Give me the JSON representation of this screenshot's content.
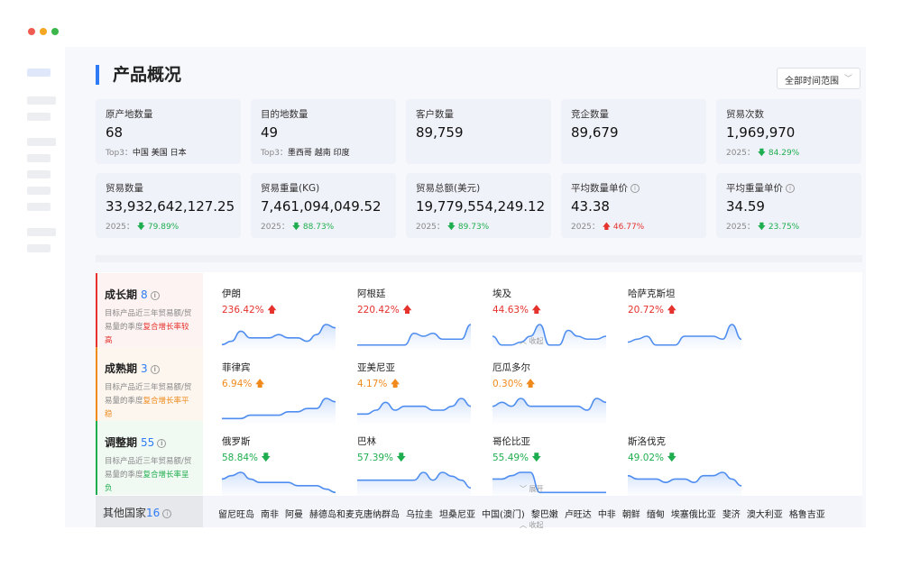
{
  "window": {
    "controls": [
      "close",
      "minimize",
      "maximize"
    ]
  },
  "header": {
    "title": "产品概况",
    "range_select": "全部时间范围"
  },
  "cards": [
    {
      "label": "原产地数量",
      "value": "68",
      "sub_label": "Top3：",
      "sub_value": "中国 美国 日本"
    },
    {
      "label": "目的地数量",
      "value": "49",
      "sub_label": "Top3：",
      "sub_value": "墨西哥 越南 印度"
    },
    {
      "label": "客户数量",
      "value": "89,759"
    },
    {
      "label": "竞企数量",
      "value": "89,679"
    },
    {
      "label": "贸易次数",
      "value": "1,969,970",
      "sub_label": "2025：",
      "change": "84.29%",
      "direction": "down"
    },
    {
      "label": "贸易数量",
      "value": "33,932,642,127.25",
      "sub_label": "2025：",
      "change": "79.89%",
      "direction": "down"
    },
    {
      "label": "贸易重量(KG)",
      "value": "7,461,094,049.52",
      "sub_label": "2025：",
      "change": "88.73%",
      "direction": "down"
    },
    {
      "label": "贸易总额(美元)",
      "value": "19,779,554,249.12",
      "sub_label": "2025：",
      "change": "89.73%",
      "direction": "down"
    },
    {
      "label": "平均数量单价",
      "value": "43.38",
      "sub_label": "2025：",
      "change": "46.77%",
      "direction": "up",
      "info": true
    },
    {
      "label": "平均重量单价",
      "value": "34.59",
      "sub_label": "2025：",
      "change": "23.75%",
      "direction": "down",
      "info": true
    }
  ],
  "stages": [
    {
      "name": "成长期",
      "count": "8",
      "desc": "目标产品近三年贸易额/贸易量的季度",
      "highlight": "复合增长率较高",
      "color": "#e5322d",
      "bg": "#fdf3f2",
      "toggle": "收起",
      "countries": [
        {
          "name": "伊朗",
          "pct": "236.42%",
          "dir": "up",
          "series": [
            1,
            2,
            5,
            3,
            3,
            3,
            4,
            3,
            3,
            2,
            4,
            7,
            6
          ]
        },
        {
          "name": "阿根廷",
          "pct": "220.42%",
          "dir": "up",
          "series": [
            1,
            1,
            1,
            1,
            1,
            1,
            5,
            4,
            5,
            3,
            3,
            3,
            8
          ]
        },
        {
          "name": "埃及",
          "pct": "44.63%",
          "dir": "up",
          "series": [
            4,
            1,
            1,
            2,
            4,
            8,
            1,
            1,
            6,
            4,
            3,
            3,
            4
          ]
        },
        {
          "name": "哈萨克斯坦",
          "pct": "20.72%",
          "dir": "up",
          "series": [
            2,
            3,
            4,
            1,
            1,
            1,
            4,
            4,
            4,
            4,
            3,
            8,
            3
          ]
        }
      ]
    },
    {
      "name": "成熟期",
      "count": "3",
      "desc": "目标产品近三年贸易额/贸易量的季度",
      "highlight": "复合增长率平稳",
      "color": "#f08a1c",
      "bg": "#fdf6ef",
      "toggle": "",
      "countries": [
        {
          "name": "菲律宾",
          "pct": "6.94%",
          "dir": "up",
          "series": [
            1,
            1,
            1,
            2,
            2,
            2,
            2,
            3,
            3,
            4,
            4,
            7,
            6
          ]
        },
        {
          "name": "亚美尼亚",
          "pct": "4.17%",
          "dir": "up",
          "series": [
            2,
            2,
            3,
            5,
            3,
            4,
            4,
            4,
            3,
            3,
            4,
            6,
            4
          ]
        },
        {
          "name": "厄瓜多尔",
          "pct": "0.30%",
          "dir": "up",
          "series": [
            4,
            5,
            4,
            6,
            4,
            4,
            4,
            4,
            4,
            4,
            3,
            6,
            5
          ]
        }
      ]
    },
    {
      "name": "调整期",
      "count": "55",
      "desc": "目标产品近三年贸易额/贸易量的季度",
      "highlight": "复合增长率呈负",
      "color": "#1fae4f",
      "bg": "#f1f9f3",
      "toggle": "展开",
      "countries": [
        {
          "name": "俄罗斯",
          "pct": "58.84%",
          "dir": "down",
          "series": [
            5,
            6,
            7,
            5,
            4,
            4,
            4,
            4,
            3,
            3,
            3,
            2,
            1
          ]
        },
        {
          "name": "巴林",
          "pct": "57.39%",
          "dir": "down",
          "series": [
            4,
            4,
            4,
            4,
            4,
            4,
            4,
            6,
            4,
            6,
            5,
            4,
            2
          ]
        },
        {
          "name": "哥伦比亚",
          "pct": "55.49%",
          "dir": "down",
          "series": [
            5,
            5,
            6,
            7,
            7,
            1,
            1,
            1,
            1,
            1,
            1,
            1,
            1
          ]
        },
        {
          "name": "斯洛伐克",
          "pct": "49.02%",
          "dir": "down",
          "series": [
            6,
            5,
            5,
            5,
            4,
            5,
            5,
            4,
            6,
            6,
            7,
            5,
            3
          ]
        }
      ]
    }
  ],
  "others": {
    "label": "其他国家",
    "count": "16",
    "toggle": "收起",
    "countries": [
      "留尼旺岛",
      "南非",
      "阿曼",
      "赫德岛和麦克唐纳群岛",
      "乌拉圭",
      "坦桑尼亚",
      "中国(澳门)",
      "黎巴嫩",
      "卢旺达",
      "中非",
      "朝鲜",
      "缅甸",
      "埃塞俄比亚",
      "斐济",
      "澳大利亚",
      "格鲁吉亚"
    ]
  },
  "colors": {
    "accent": "#2f7bf5",
    "up": "#e5322d",
    "down": "#1fae4f",
    "stable": "#f08a1c"
  }
}
